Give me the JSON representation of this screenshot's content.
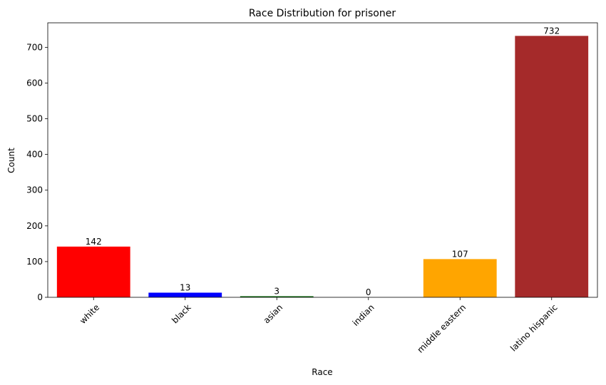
{
  "chart_data": {
    "type": "bar",
    "title": "Race Distribution for prisoner",
    "xlabel": "Race",
    "ylabel": "Count",
    "categories": [
      "white",
      "black",
      "asian",
      "indian",
      "middle eastern",
      "latino hispanic"
    ],
    "values": [
      142,
      13,
      3,
      0,
      107,
      732
    ],
    "value_labels": [
      "142",
      "13",
      "3",
      "0",
      "107",
      "732"
    ],
    "colors": [
      "#ff0000",
      "#0000ff",
      "#006400",
      "#800080",
      "#ffa500",
      "#a52a2a"
    ],
    "ylim": [
      0,
      768.6
    ],
    "yticks": [
      0,
      100,
      200,
      300,
      400,
      500,
      600,
      700
    ],
    "ytick_labels": [
      "0",
      "100",
      "200",
      "300",
      "400",
      "500",
      "600",
      "700"
    ],
    "grid": false,
    "legend": "none"
  }
}
